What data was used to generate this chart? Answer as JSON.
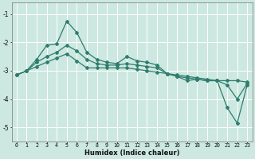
{
  "xlabel": "Humidex (Indice chaleur)",
  "ylabel": "",
  "background_color": "#cce8e0",
  "grid_color": "#ffffff",
  "line_color": "#2e7d6e",
  "xlim": [
    -0.5,
    23.5
  ],
  "ylim": [
    -5.5,
    -0.6
  ],
  "yticks": [
    -5,
    -4,
    -3,
    -2,
    -1
  ],
  "xticks": [
    0,
    1,
    2,
    3,
    4,
    5,
    6,
    7,
    8,
    9,
    10,
    11,
    12,
    13,
    14,
    15,
    16,
    17,
    18,
    19,
    20,
    21,
    22,
    23
  ],
  "series1_x": [
    0,
    1,
    2,
    3,
    4,
    5,
    6,
    7,
    8,
    9,
    10,
    11,
    12,
    13,
    14,
    15,
    16,
    17,
    18,
    19,
    20,
    21,
    22,
    23
  ],
  "series1_y": [
    -3.15,
    -3.0,
    -2.6,
    -2.1,
    -2.05,
    -1.25,
    -1.65,
    -2.35,
    -2.6,
    -2.7,
    -2.75,
    -2.5,
    -2.65,
    -2.7,
    -2.8,
    -3.1,
    -3.2,
    -3.35,
    -3.3,
    -3.35,
    -3.35,
    -4.3,
    -4.85,
    -3.5
  ],
  "series2_x": [
    0,
    1,
    2,
    3,
    4,
    5,
    6,
    7,
    8,
    9,
    10,
    11,
    12,
    13,
    14,
    15,
    16,
    17,
    18,
    19,
    20,
    21,
    22,
    23
  ],
  "series2_y": [
    -3.15,
    -3.0,
    -2.85,
    -2.7,
    -2.55,
    -2.4,
    -2.65,
    -2.9,
    -2.9,
    -2.9,
    -2.9,
    -2.9,
    -2.95,
    -3.0,
    -3.05,
    -3.1,
    -3.15,
    -3.2,
    -3.25,
    -3.3,
    -3.35,
    -3.35,
    -3.35,
    -3.4
  ],
  "series3_x": [
    0,
    1,
    2,
    3,
    4,
    5,
    6,
    7,
    8,
    9,
    10,
    11,
    12,
    13,
    14,
    15,
    16,
    17,
    18,
    19,
    20,
    21,
    22,
    23
  ],
  "series3_y": [
    -3.15,
    -3.0,
    -2.7,
    -2.5,
    -2.35,
    -2.1,
    -2.3,
    -2.6,
    -2.75,
    -2.8,
    -2.8,
    -2.75,
    -2.8,
    -2.85,
    -2.9,
    -3.1,
    -3.2,
    -3.25,
    -3.3,
    -3.35,
    -3.35,
    -3.5,
    -4.0,
    -3.45
  ],
  "xlabel_fontsize": 6.0,
  "tick_fontsize": 4.8,
  "ytick_fontsize": 5.5,
  "linewidth": 0.9,
  "markersize": 2.0
}
